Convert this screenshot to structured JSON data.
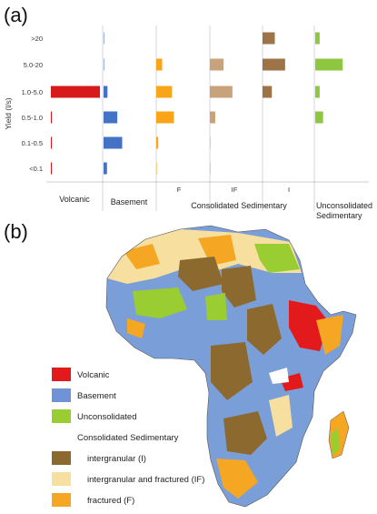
{
  "panel_a_label": "(a)",
  "panel_b_label": "(b)",
  "chart_data": {
    "type": "bar",
    "orientation": "horizontal",
    "ylabel": "Yield (l/s)",
    "categories": [
      ">20",
      "5.0-20",
      "1.0-5.0",
      "0.5-1.0",
      "0.1-0.5",
      "<0.1"
    ],
    "series": [
      {
        "label": "Volcanic",
        "color": "#d7191c",
        "values": [
          0,
          0,
          100,
          2,
          2,
          2
        ]
      },
      {
        "label": "Basement",
        "color": "#4472c4",
        "values": [
          1,
          1,
          8,
          28,
          38,
          7
        ]
      },
      {
        "label": "F",
        "color": "#f9a51a",
        "values": [
          0,
          12,
          32,
          36,
          4,
          1
        ]
      },
      {
        "label": "IF",
        "color": "#c8a27a",
        "values": [
          0,
          28,
          46,
          11,
          1,
          1
        ]
      },
      {
        "label": "I",
        "color": "#9c7447",
        "values": [
          25,
          46,
          19,
          0,
          0,
          0
        ]
      },
      {
        "label": "Unconsolidated Sedimentary",
        "color": "#8dc63f",
        "values": [
          9,
          56,
          9,
          16,
          0,
          0
        ]
      }
    ],
    "group_labels": {
      "volcanic": "Volcanic",
      "basement": "Basement",
      "consolidated": "Consolidated Sedimentary",
      "unconsolidated_line1": "Unconsolidated",
      "unconsolidated_line2": "Sedimentary"
    },
    "sub_labels": [
      "F",
      "IF",
      "I"
    ]
  },
  "map_legend": [
    {
      "label": "Volcanic",
      "color": "#e31a1c"
    },
    {
      "label": "Basement",
      "color": "#6f93d6"
    },
    {
      "label": "Unconsolidated",
      "color": "#9acd32"
    },
    {
      "label": "Consolidated Sedimentary",
      "color": null
    },
    {
      "label": "intergranular (I)",
      "color": "#8c6a2f"
    },
    {
      "label": "intergranular and fractured (IF)",
      "color": "#f7dfa0"
    },
    {
      "label": "fractured (F)",
      "color": "#f5a623"
    }
  ]
}
